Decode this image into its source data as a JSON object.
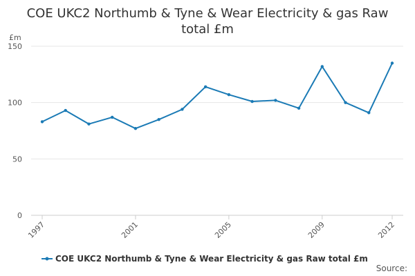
{
  "chart_data": {
    "type": "line",
    "title": "COE UKC2 Northumb & Tyne & Wear Electricity & gas Raw total £m",
    "xlabel": "",
    "ylabel": "£m",
    "x": [
      1997,
      1998,
      1999,
      2000,
      2001,
      2002,
      2003,
      2004,
      2005,
      2006,
      2007,
      2008,
      2009,
      2010,
      2011,
      2012
    ],
    "x_tick_labels": [
      "1997",
      "2001",
      "2005",
      "2009",
      "2012"
    ],
    "x_tick_values": [
      1997,
      2001,
      2005,
      2009,
      2012
    ],
    "y_ticks": [
      0,
      50,
      100,
      150
    ],
    "ylim": [
      0,
      150
    ],
    "grid": true,
    "legend_position": "bottom",
    "series": [
      {
        "name": "COE UKC2 Northumb & Tyne & Wear Electricity & gas Raw total £m",
        "color": "#1a7ab5",
        "values": [
          83,
          93,
          81,
          87,
          77,
          85,
          94,
          114,
          107,
          101,
          102,
          95,
          132,
          100,
          91,
          135
        ]
      }
    ]
  },
  "credits": "Source:"
}
